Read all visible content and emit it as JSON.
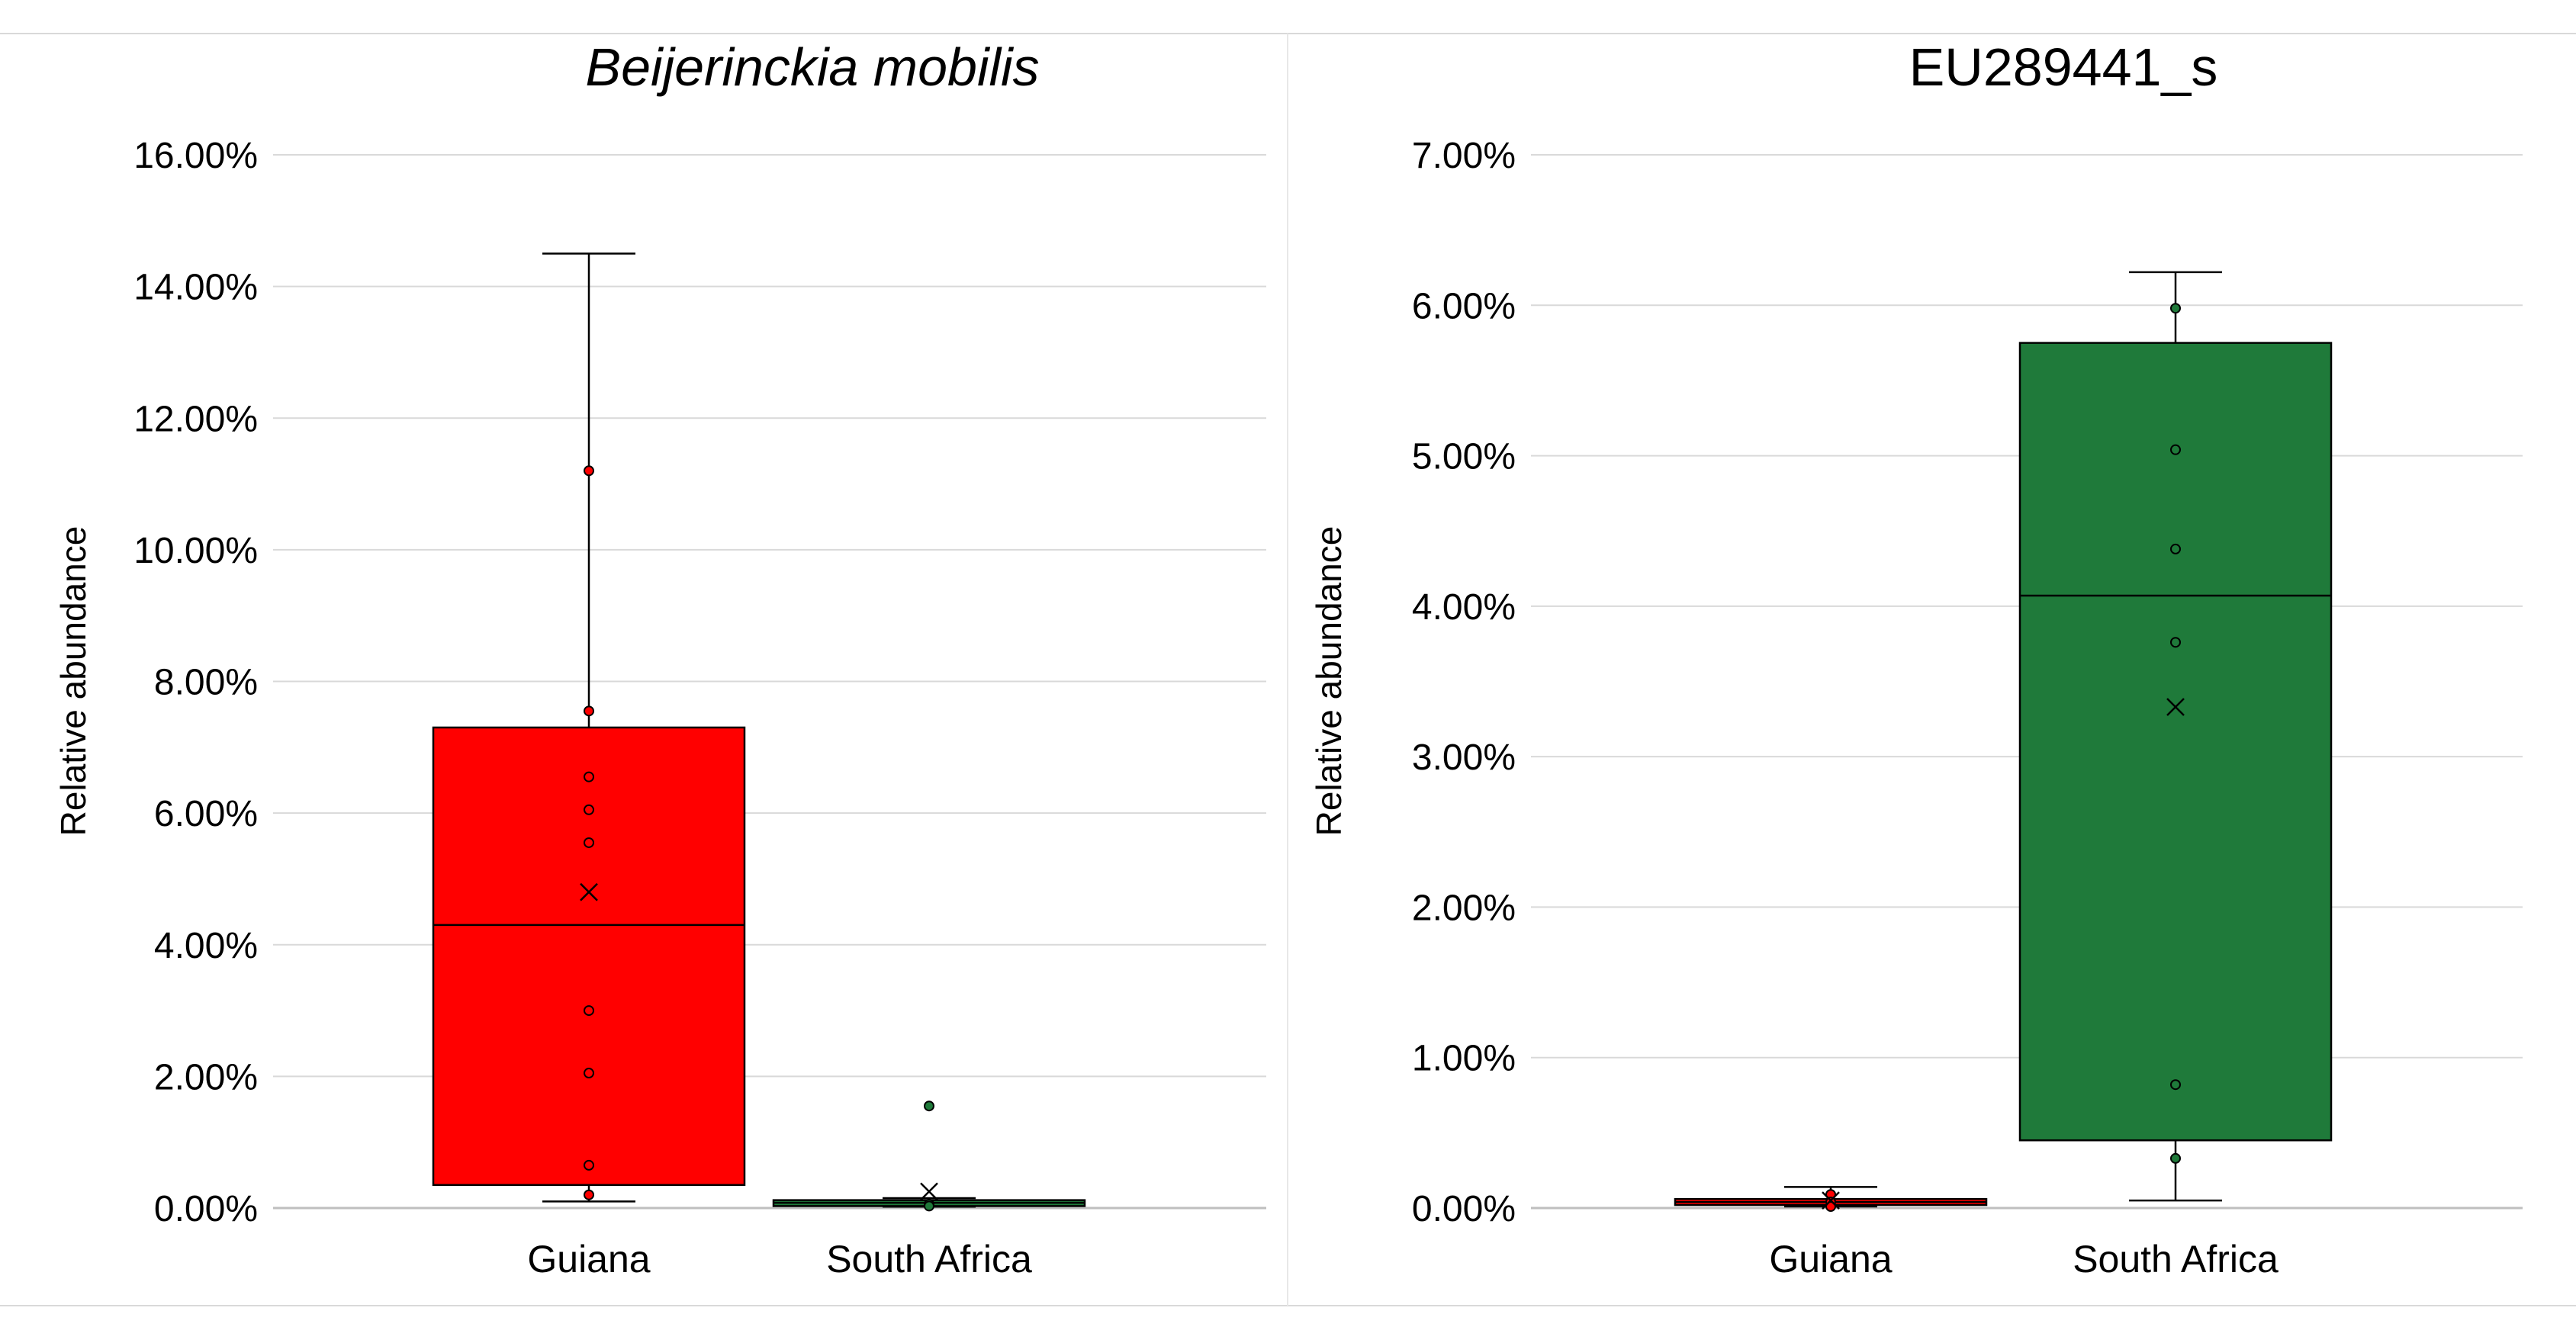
{
  "colors": {
    "guiana": "#ff0000",
    "south_africa": "#1f7a3a",
    "grid": "#d9d9d9",
    "axis": "#d9d9d9",
    "frame": "#d9d9d9",
    "stroke": "#000000"
  },
  "chart_data": [
    {
      "type": "box",
      "title": "Beijerinckia mobilis",
      "title_style": "italic",
      "xlabel": "",
      "ylabel": "Relative abundance",
      "ylim": [
        0,
        0.16
      ],
      "y_ticks": [
        {
          "value": 0.0,
          "label": "0.00%"
        },
        {
          "value": 0.02,
          "label": "2.00%"
        },
        {
          "value": 0.04,
          "label": "4.00%"
        },
        {
          "value": 0.06,
          "label": "6.00%"
        },
        {
          "value": 0.08,
          "label": "8.00%"
        },
        {
          "value": 0.1,
          "label": "10.00%"
        },
        {
          "value": 0.12,
          "label": "12.00%"
        },
        {
          "value": 0.14,
          "label": "14.00%"
        },
        {
          "value": 0.16,
          "label": "16.00%"
        }
      ],
      "grid": true,
      "categories": [
        "Guiana",
        "South Africa"
      ],
      "boxes": [
        {
          "category": "Guiana",
          "color": "#ff0000",
          "whisker_low": 0.001,
          "q1": 0.0035,
          "median": 0.043,
          "q3": 0.073,
          "whisker_high": 0.145,
          "mean": 0.048,
          "points": [
            0.112,
            0.0755,
            0.0655,
            0.0605,
            0.0555,
            0.03,
            0.0205,
            0.0065,
            0.002
          ]
        },
        {
          "category": "South Africa",
          "color": "#1f7a3a",
          "whisker_low": 0.0002,
          "q1": 0.0003,
          "median": 0.0008,
          "q3": 0.0012,
          "whisker_high": 0.0015,
          "mean": 0.0025,
          "points": [
            0.0155,
            0.0006,
            0.0003
          ]
        }
      ]
    },
    {
      "type": "box",
      "title": "EU289441_s",
      "title_style": "normal",
      "xlabel": "",
      "ylabel": "Relative abundance",
      "ylim": [
        0,
        0.07
      ],
      "y_ticks": [
        {
          "value": 0.0,
          "label": "0.00%"
        },
        {
          "value": 0.01,
          "label": "1.00%"
        },
        {
          "value": 0.02,
          "label": "2.00%"
        },
        {
          "value": 0.03,
          "label": "3.00%"
        },
        {
          "value": 0.04,
          "label": "4.00%"
        },
        {
          "value": 0.05,
          "label": "5.00%"
        },
        {
          "value": 0.06,
          "label": "6.00%"
        },
        {
          "value": 0.07,
          "label": "7.00%"
        }
      ],
      "grid": true,
      "categories": [
        "Guiana",
        "South Africa"
      ],
      "boxes": [
        {
          "category": "Guiana",
          "color": "#ff0000",
          "whisker_low": 0.0001,
          "q1": 0.0002,
          "median": 0.0004,
          "q3": 0.0006,
          "whisker_high": 0.0014,
          "mean": 0.0005,
          "points": [
            0.0009,
            0.0004,
            0.0001
          ]
        },
        {
          "category": "South Africa",
          "color": "#1f7a3a",
          "whisker_low": 0.0005,
          "q1": 0.0045,
          "median": 0.0407,
          "q3": 0.0575,
          "whisker_high": 0.0622,
          "mean": 0.0333,
          "points": [
            0.0598,
            0.0504,
            0.0438,
            0.0376,
            0.0082,
            0.0033
          ]
        }
      ]
    }
  ]
}
